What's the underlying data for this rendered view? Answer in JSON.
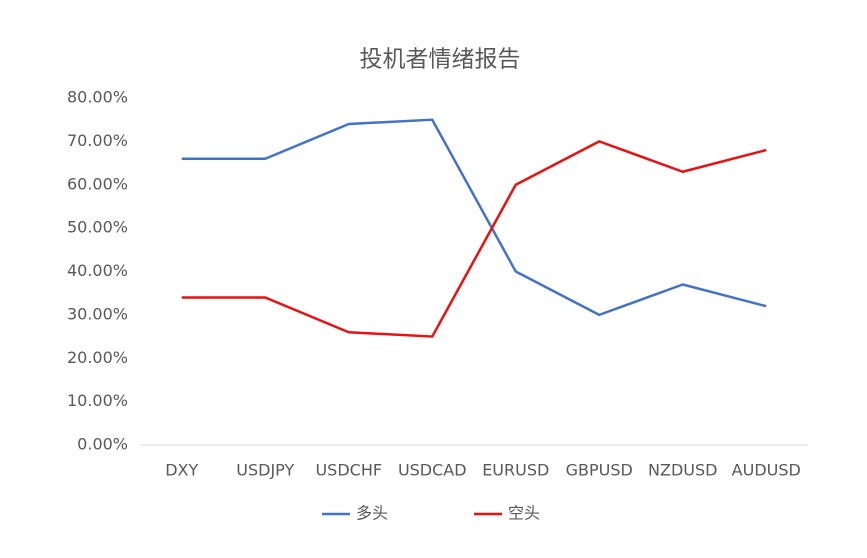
{
  "chart_data": {
    "type": "line",
    "title": "投机者情绪报告",
    "categories": [
      "DXY",
      "USDJPY",
      "USDCHF",
      "USDCAD",
      "EURUSD",
      "GBPUSD",
      "NZDUSD",
      "AUDUSD"
    ],
    "series": [
      {
        "name": "多头",
        "color": "#4472c4",
        "values": [
          66,
          66,
          74,
          75,
          40,
          30,
          37,
          32
        ]
      },
      {
        "name": "空头",
        "color": "#e81010",
        "values": [
          34,
          34,
          26,
          25,
          60,
          70,
          63,
          68
        ]
      }
    ],
    "ylim": [
      0,
      80
    ],
    "yticks": [
      {
        "value": 0,
        "label": "0.00%"
      },
      {
        "value": 10,
        "label": "10.00%"
      },
      {
        "value": 20,
        "label": "20.00%"
      },
      {
        "value": 30,
        "label": "30.00%"
      },
      {
        "value": 40,
        "label": "40.00%"
      },
      {
        "value": 50,
        "label": "50.00%"
      },
      {
        "value": 60,
        "label": "60.00%"
      },
      {
        "value": 70,
        "label": "70.00%"
      },
      {
        "value": 80,
        "label": "80.00%"
      }
    ],
    "grid": false,
    "legend": "bottom"
  }
}
